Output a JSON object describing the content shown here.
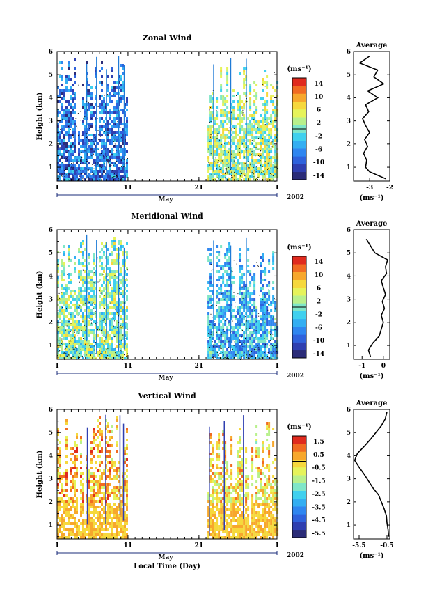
{
  "chart_data": [
    {
      "type": "heatmap",
      "title": "Zonal Wind",
      "xlabel": "",
      "ylabel": "Height (km)",
      "ylim": [
        0.4,
        6
      ],
      "yticks": [
        "1",
        "2",
        "3",
        "4",
        "5",
        "6"
      ],
      "xticks": [
        "1",
        "11",
        "21",
        "1"
      ],
      "x_range_label": "May",
      "year_label": "2002",
      "colorbar": {
        "unit": "(ms⁻¹)",
        "range": [
          -15,
          15
        ],
        "ticks": [
          "14",
          "10",
          "6",
          "2",
          "-2",
          "-6",
          "-10",
          "-14"
        ],
        "colors": [
          "#2b2c78",
          "#2f3fb0",
          "#2f62dc",
          "#2f86f0",
          "#33aef2",
          "#3fd0ee",
          "#7fe6c8",
          "#b8f08c",
          "#e6f35a",
          "#f6d83c",
          "#f7a72c",
          "#f16b22",
          "#e02a1e"
        ]
      },
      "data_windows": [
        {
          "x": [
            1,
            10.9
          ],
          "y_top": 5.8
        },
        {
          "x": [
            22.2,
            32
          ],
          "y_top": 5.4
        }
      ],
      "dominant_values": [
        -8,
        2
      ],
      "average_profile": {
        "title": "Average",
        "xlabel": "(ms⁻¹)",
        "xticks": [
          "-3",
          "-2"
        ],
        "xlim": [
          -3.8,
          -2
        ],
        "height": [
          0.5,
          0.8,
          1.0,
          1.3,
          1.6,
          1.9,
          2.2,
          2.5,
          2.8,
          3.1,
          3.4,
          3.7,
          4.0,
          4.3,
          4.6,
          4.9,
          5.2,
          5.5,
          5.8
        ],
        "value": [
          -2.2,
          -3.0,
          -3.2,
          -3.15,
          -3.3,
          -3.1,
          -3.25,
          -3.0,
          -3.2,
          -3.35,
          -3.05,
          -3.2,
          -2.6,
          -3.1,
          -2.3,
          -2.8,
          -2.6,
          -3.5,
          -3.0
        ]
      }
    },
    {
      "type": "heatmap",
      "title": "Meridional Wind",
      "xlabel": "",
      "ylabel": "Height (km)",
      "ylim": [
        0.4,
        6
      ],
      "yticks": [
        "1",
        "2",
        "3",
        "4",
        "5",
        "6"
      ],
      "xticks": [
        "1",
        "11",
        "21",
        "1"
      ],
      "x_range_label": "May",
      "year_label": "2002",
      "colorbar": {
        "unit": "(ms⁻¹)",
        "range": [
          -15,
          15
        ],
        "ticks": [
          "14",
          "10",
          "6",
          "2",
          "-2",
          "-6",
          "-10",
          "-14"
        ],
        "colors": [
          "#2b2c78",
          "#2f3fb0",
          "#2f62dc",
          "#2f86f0",
          "#33aef2",
          "#3fd0ee",
          "#7fe6c8",
          "#b8f08c",
          "#e6f35a",
          "#f6d83c",
          "#f7a72c",
          "#f16b22",
          "#e02a1e"
        ]
      },
      "data_windows": [
        {
          "x": [
            1,
            10.9
          ],
          "y_top": 5.8
        },
        {
          "x": [
            22.2,
            32
          ],
          "y_top": 5.5
        }
      ],
      "dominant_values": [
        1,
        -4
      ],
      "average_profile": {
        "title": "Average",
        "xlabel": "(ms⁻¹)",
        "xticks": [
          "-1",
          "0"
        ],
        "xlim": [
          -1.4,
          0.3
        ],
        "height": [
          0.5,
          0.8,
          1.1,
          1.4,
          1.7,
          2.0,
          2.3,
          2.6,
          2.9,
          3.2,
          3.5,
          3.8,
          4.1,
          4.4,
          4.7,
          5.0,
          5.3,
          5.6
        ],
        "value": [
          -0.6,
          -0.7,
          -0.5,
          -0.2,
          -0.1,
          0.0,
          -0.1,
          0.05,
          -0.05,
          0.1,
          0.0,
          -0.1,
          0.15,
          0.1,
          0.2,
          -0.4,
          -0.6,
          -0.8
        ]
      }
    },
    {
      "type": "heatmap",
      "title": "Vertical Wind",
      "xlabel": "Local Time (Day)",
      "ylabel": "Height (km)",
      "ylim": [
        0.4,
        6
      ],
      "yticks": [
        "1",
        "2",
        "3",
        "4",
        "5",
        "6"
      ],
      "xticks": [
        "1",
        "11",
        "21",
        "1"
      ],
      "x_range_label": "May",
      "year_label": "2002",
      "colorbar": {
        "unit": "(ms⁻¹)",
        "range": [
          -6,
          2
        ],
        "ticks": [
          "1.5",
          "0.5",
          "-0.5",
          "-1.5",
          "-2.5",
          "-3.5",
          "-4.5",
          "-5.5"
        ],
        "colors": [
          "#2b2c78",
          "#2f3fb0",
          "#2f62dc",
          "#2f86f0",
          "#33aef2",
          "#3fd0ee",
          "#7fe6c8",
          "#b8f08c",
          "#e6f35a",
          "#f6d83c",
          "#f7a72c",
          "#f16b22",
          "#e02a1e"
        ]
      },
      "data_windows": [
        {
          "x": [
            1,
            10.9
          ],
          "y_top": 5.8
        },
        {
          "x": [
            22.2,
            32
          ],
          "y_top": 5.6
        }
      ],
      "dominant_values": [
        0.2,
        -0.3
      ],
      "average_profile": {
        "title": "Average",
        "xlabel": "(ms⁻¹)",
        "xticks": [
          "-5.5",
          "-0.5"
        ],
        "xlim": [
          -6.5,
          0
        ],
        "height": [
          0.5,
          0.8,
          1.1,
          1.4,
          1.7,
          2.0,
          2.3,
          2.6,
          2.9,
          3.2,
          3.5,
          3.8,
          4.1,
          4.4,
          4.7,
          5.0,
          5.3,
          5.6,
          5.9
        ],
        "value": [
          -0.2,
          -0.3,
          -0.5,
          -0.6,
          -1.0,
          -1.5,
          -2.0,
          -3.0,
          -3.8,
          -4.6,
          -5.5,
          -6.3,
          -5.8,
          -4.6,
          -3.5,
          -2.5,
          -1.5,
          -0.8,
          -0.5
        ]
      }
    }
  ]
}
